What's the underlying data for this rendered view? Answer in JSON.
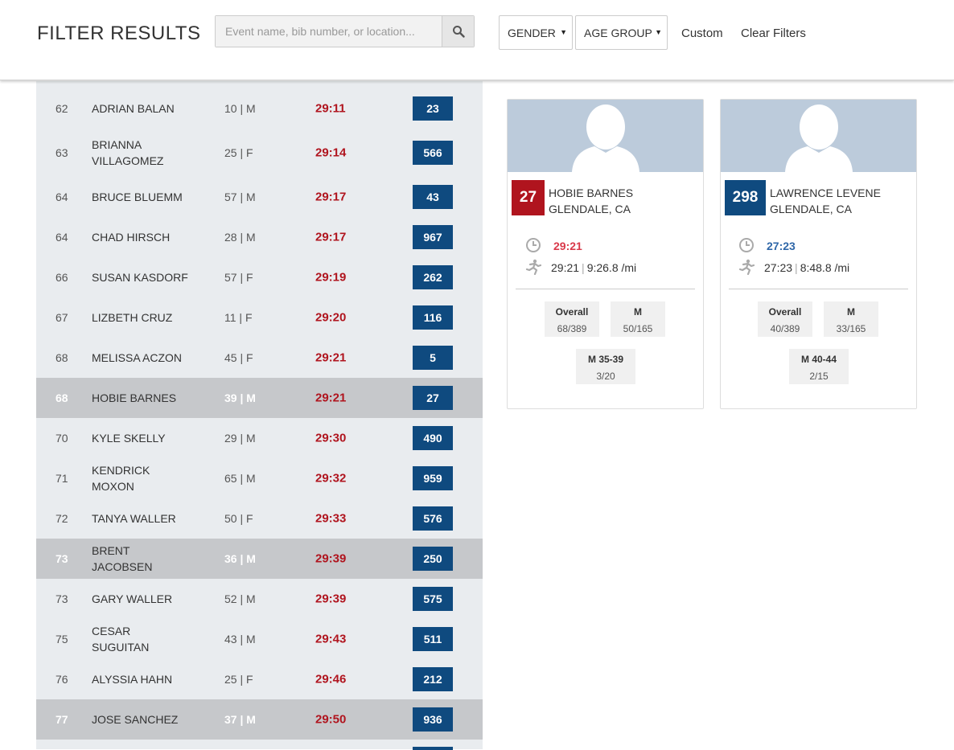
{
  "header": {
    "title": "FILTER RESULTS",
    "search_placeholder": "Event name, bib number, or location...",
    "gender_label": "GENDER",
    "age_group_label": "AGE GROUP",
    "custom_label": "Custom",
    "clear_label": "Clear Filters"
  },
  "colors": {
    "bib_blue": "#0f4a7f",
    "accent_red": "#b0141e",
    "time_blue": "#2f67a8"
  },
  "results": [
    {
      "place": "62",
      "name": "ADRIAN BALAN",
      "age": "10 | M",
      "time": "29:11",
      "bib": "23",
      "selected": false
    },
    {
      "place": "63",
      "name": "BRIANNA VILLAGOMEZ",
      "age": "25 | F",
      "time": "29:14",
      "bib": "566",
      "selected": false
    },
    {
      "place": "64",
      "name": "BRUCE BLUEMM",
      "age": "57 | M",
      "time": "29:17",
      "bib": "43",
      "selected": false
    },
    {
      "place": "64",
      "name": "CHAD HIRSCH",
      "age": "28 | M",
      "time": "29:17",
      "bib": "967",
      "selected": false
    },
    {
      "place": "66",
      "name": "SUSAN KASDORF",
      "age": "57 | F",
      "time": "29:19",
      "bib": "262",
      "selected": false
    },
    {
      "place": "67",
      "name": "LIZBETH CRUZ",
      "age": "11 | F",
      "time": "29:20",
      "bib": "116",
      "selected": false
    },
    {
      "place": "68",
      "name": "MELISSA ACZON",
      "age": "45 | F",
      "time": "29:21",
      "bib": "5",
      "selected": false
    },
    {
      "place": "68",
      "name": "HOBIE BARNES",
      "age": "39 | M",
      "time": "29:21",
      "bib": "27",
      "selected": true
    },
    {
      "place": "70",
      "name": "KYLE SKELLY",
      "age": "29 | M",
      "time": "29:30",
      "bib": "490",
      "selected": false
    },
    {
      "place": "71",
      "name": "KENDRICK MOXON",
      "age": "65 | M",
      "time": "29:32",
      "bib": "959",
      "selected": false
    },
    {
      "place": "72",
      "name": "TANYA WALLER",
      "age": "50 | F",
      "time": "29:33",
      "bib": "576",
      "selected": false
    },
    {
      "place": "73",
      "name": "BRENT JACOBSEN",
      "age": "36 | M",
      "time": "29:39",
      "bib": "250",
      "selected": true
    },
    {
      "place": "73",
      "name": "GARY WALLER",
      "age": "52 | M",
      "time": "29:39",
      "bib": "575",
      "selected": false
    },
    {
      "place": "75",
      "name": "CESAR SUGUITAN",
      "age": "43 | M",
      "time": "29:43",
      "bib": "511",
      "selected": false
    },
    {
      "place": "76",
      "name": "ALYSSIA HAHN",
      "age": "25 | F",
      "time": "29:46",
      "bib": "212",
      "selected": false
    },
    {
      "place": "77",
      "name": "JOSE SANCHEZ",
      "age": "37 | M",
      "time": "29:50",
      "bib": "936",
      "selected": true
    }
  ],
  "cards": [
    {
      "bib": "27",
      "name": "HOBIE BARNES",
      "location": "GLENDALE, CA",
      "chip_time": "29:21",
      "time": "29:21",
      "pace": "9:26.8 /mi",
      "overall_label": "Overall",
      "overall": "68/389",
      "gender_label": "M",
      "gender": "50/165",
      "division_label": "M 35-39",
      "division": "3/20"
    },
    {
      "bib": "298",
      "name": "LAWRENCE LEVENE",
      "location": "GLENDALE, CA",
      "chip_time": "27:23",
      "time": "27:23",
      "pace": "8:48.8 /mi",
      "overall_label": "Overall",
      "overall": "40/389",
      "gender_label": "M",
      "gender": "33/165",
      "division_label": "M 40-44",
      "division": "2/15"
    }
  ]
}
